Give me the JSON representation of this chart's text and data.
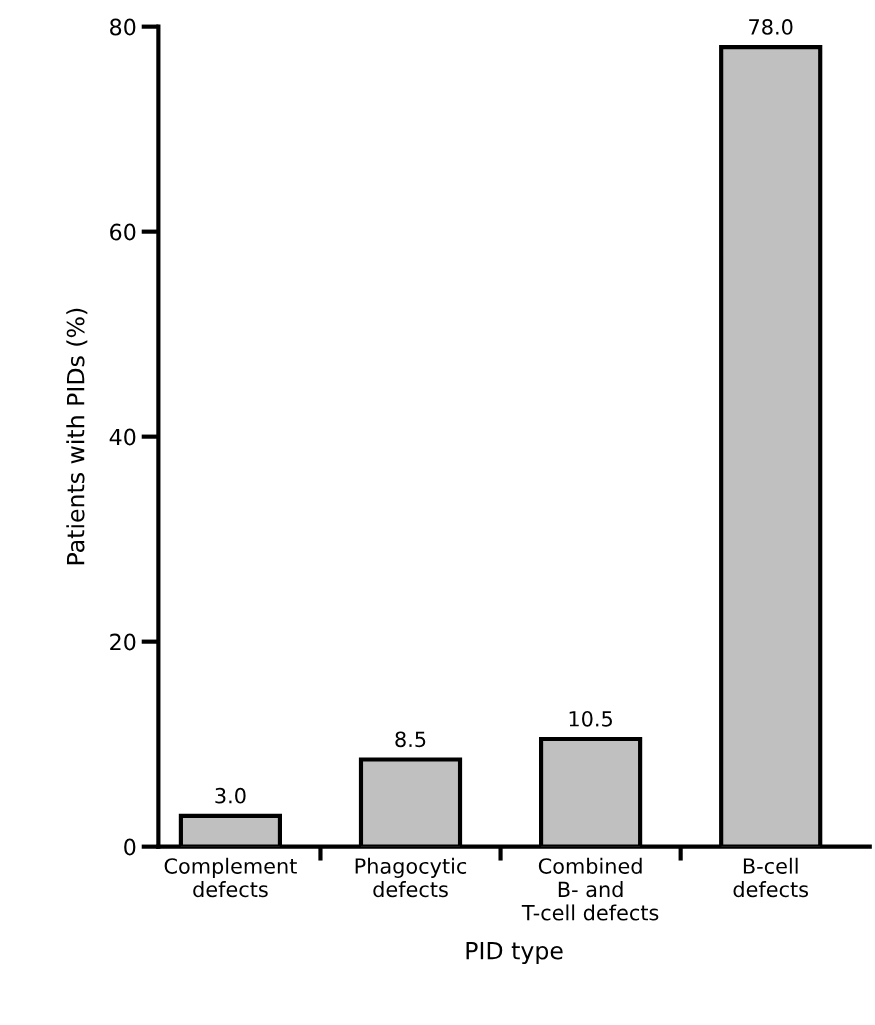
{
  "chart_data": {
    "type": "bar",
    "xlabel": "PID type",
    "ylabel": "Patients with PIDs (%)",
    "categories": [
      "Complement\ndefects",
      "Phagocytic\ndefects",
      "Combined\nB- and\nT-cell defects",
      "B-cell\ndefects"
    ],
    "values": [
      3.0,
      8.5,
      10.5,
      78.0
    ],
    "value_labels": [
      "3.0",
      "8.5",
      "10.5",
      "78.0"
    ],
    "color": "#c0c0c0",
    "ylim": [
      0,
      80
    ],
    "yticks": [
      0,
      20,
      40,
      60,
      80
    ],
    "grid": false
  }
}
